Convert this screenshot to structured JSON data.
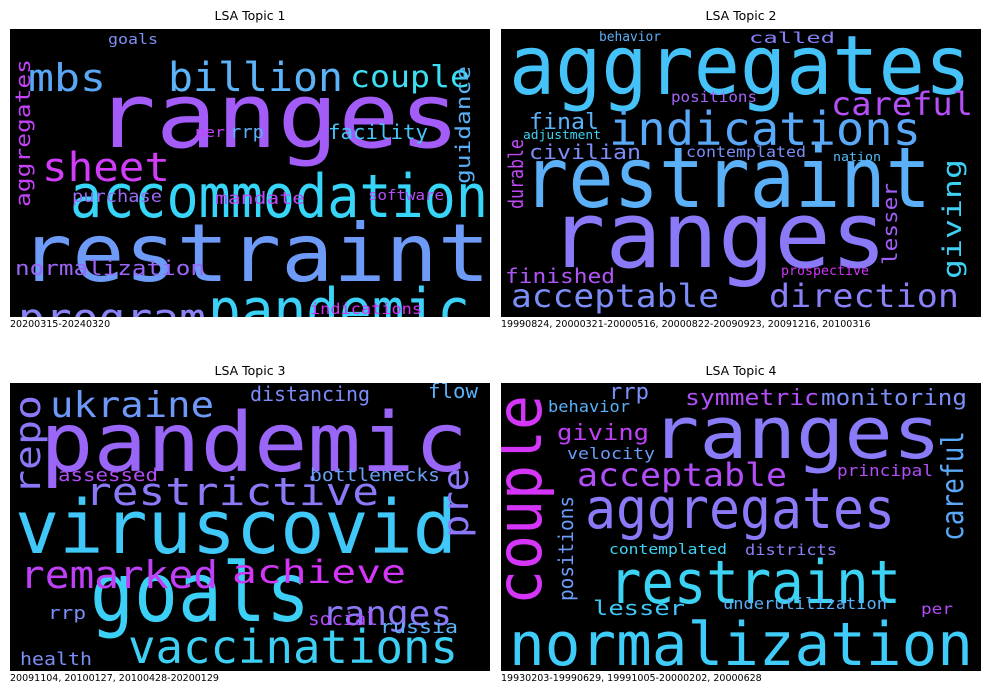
{
  "chart_data": [
    {
      "type": "wordcloud",
      "title": "LSA Topic 1",
      "caption": "20200315-20240320",
      "words": [
        {
          "text": "ranges",
          "color": "#a35cf8"
        },
        {
          "text": "restraint",
          "color": "#6e9bf8"
        },
        {
          "text": "accommodation",
          "color": "#37d5f8"
        },
        {
          "text": "pandemic",
          "color": "#3cd2f8"
        },
        {
          "text": "billion",
          "color": "#5cb3f8"
        },
        {
          "text": "program",
          "color": "#8a84f8"
        },
        {
          "text": "sheet",
          "color": "#d03cf8"
        },
        {
          "text": "couple",
          "color": "#3cdff4"
        },
        {
          "text": "mbs",
          "color": "#5aa7f6"
        },
        {
          "text": "aggregates",
          "color": "#c442f8"
        },
        {
          "text": "guidance",
          "color": "#5ab0f6"
        },
        {
          "text": "normalization",
          "color": "#9b65f8"
        },
        {
          "text": "facility",
          "color": "#45c6f8"
        },
        {
          "text": "mandate",
          "color": "#bd49f8"
        },
        {
          "text": "purchase",
          "color": "#9a6af8"
        },
        {
          "text": "rrp",
          "color": "#5eaef8"
        },
        {
          "text": "goals",
          "color": "#7e8ff8"
        },
        {
          "text": "per",
          "color": "#c143f8"
        },
        {
          "text": "software",
          "color": "#b84ef8"
        },
        {
          "text": "indications",
          "color": "#d830f8"
        }
      ]
    },
    {
      "type": "wordcloud",
      "title": "LSA Topic 2",
      "caption": "19990824, 20000321-20000516, 20000822-20090923, 20091216, 20100316",
      "words": [
        {
          "text": "aggregates",
          "color": "#45c2f8"
        },
        {
          "text": "restraint",
          "color": "#5bb0f8"
        },
        {
          "text": "ranges",
          "color": "#8a7af8"
        },
        {
          "text": "indications",
          "color": "#5aa8f8"
        },
        {
          "text": "careful",
          "color": "#b54ff8"
        },
        {
          "text": "acceptable",
          "color": "#7c8df8"
        },
        {
          "text": "direction",
          "color": "#8a80f8"
        },
        {
          "text": "giving",
          "color": "#3dd0f4"
        },
        {
          "text": "final",
          "color": "#5ab2f8"
        },
        {
          "text": "civilian",
          "color": "#7d8df8"
        },
        {
          "text": "durable",
          "color": "#c04af8"
        },
        {
          "text": "finished",
          "color": "#b056f8"
        },
        {
          "text": "lesser",
          "color": "#a260f8"
        },
        {
          "text": "positions",
          "color": "#a363f8"
        },
        {
          "text": "contemplated",
          "color": "#7a8ef8"
        },
        {
          "text": "called",
          "color": "#8581f8"
        },
        {
          "text": "behavior",
          "color": "#5cb0f8"
        },
        {
          "text": "adjustment",
          "color": "#3dd3f4"
        },
        {
          "text": "nation",
          "color": "#50bdf8"
        },
        {
          "text": "prospective",
          "color": "#d035f8"
        }
      ]
    },
    {
      "type": "wordcloud",
      "title": "LSA Topic 3",
      "caption": "20091104, 20100127, 20100428-20200129",
      "words": [
        {
          "text": "pandemic",
          "color": "#9a66f8"
        },
        {
          "text": "viruscovid",
          "color": "#40c8f8"
        },
        {
          "text": "goals",
          "color": "#3cd0f6"
        },
        {
          "text": "vaccinations",
          "color": "#3dd0f4"
        },
        {
          "text": "restrictive",
          "color": "#8a7af8"
        },
        {
          "text": "ukraine",
          "color": "#6e99f8"
        },
        {
          "text": "remarked",
          "color": "#c040f8"
        },
        {
          "text": "achieve",
          "color": "#d535f8"
        },
        {
          "text": "ranges",
          "color": "#8a7af8"
        },
        {
          "text": "repo",
          "color": "#8a78f8"
        },
        {
          "text": "pre",
          "color": "#8a78f8"
        },
        {
          "text": "distancing",
          "color": "#7d8cf8"
        },
        {
          "text": "flow",
          "color": "#5ab0f8"
        },
        {
          "text": "bottlenecks",
          "color": "#6aa0f8"
        },
        {
          "text": "assessed",
          "color": "#b24ef8"
        },
        {
          "text": "social",
          "color": "#b24ef8"
        },
        {
          "text": "russia",
          "color": "#5cb2f8"
        },
        {
          "text": "rrp",
          "color": "#7c8ef8"
        },
        {
          "text": "health",
          "color": "#7c8ef8"
        }
      ]
    },
    {
      "type": "wordcloud",
      "title": "LSA Topic 4",
      "caption": "19930203-19990629, 19991005-20000202, 20000628",
      "words": [
        {
          "text": "ranges",
          "color": "#8a7cf8"
        },
        {
          "text": "aggregates",
          "color": "#8a7af8"
        },
        {
          "text": "restraint",
          "color": "#3dd3f4"
        },
        {
          "text": "normalization",
          "color": "#3fccf8"
        },
        {
          "text": "couple",
          "color": "#d535f8"
        },
        {
          "text": "careful",
          "color": "#5aa8f8"
        },
        {
          "text": "acceptable",
          "color": "#b24ef8"
        },
        {
          "text": "monitoring",
          "color": "#7c8ef8"
        },
        {
          "text": "symmetric",
          "color": "#b24ef8"
        },
        {
          "text": "giving",
          "color": "#c040f8"
        },
        {
          "text": "positions",
          "color": "#6a9cf8"
        },
        {
          "text": "lesser",
          "color": "#40c8f8"
        },
        {
          "text": "underutilization",
          "color": "#5ab0f8"
        },
        {
          "text": "rrp",
          "color": "#7c8ef8"
        },
        {
          "text": "behavior",
          "color": "#5ab0f8"
        },
        {
          "text": "principal",
          "color": "#b24ef8"
        },
        {
          "text": "velocity",
          "color": "#6a9cf8"
        },
        {
          "text": "contemplated",
          "color": "#3dd3f4"
        },
        {
          "text": "districts",
          "color": "#8a80f8"
        },
        {
          "text": "per",
          "color": "#b24ef8"
        }
      ]
    }
  ]
}
